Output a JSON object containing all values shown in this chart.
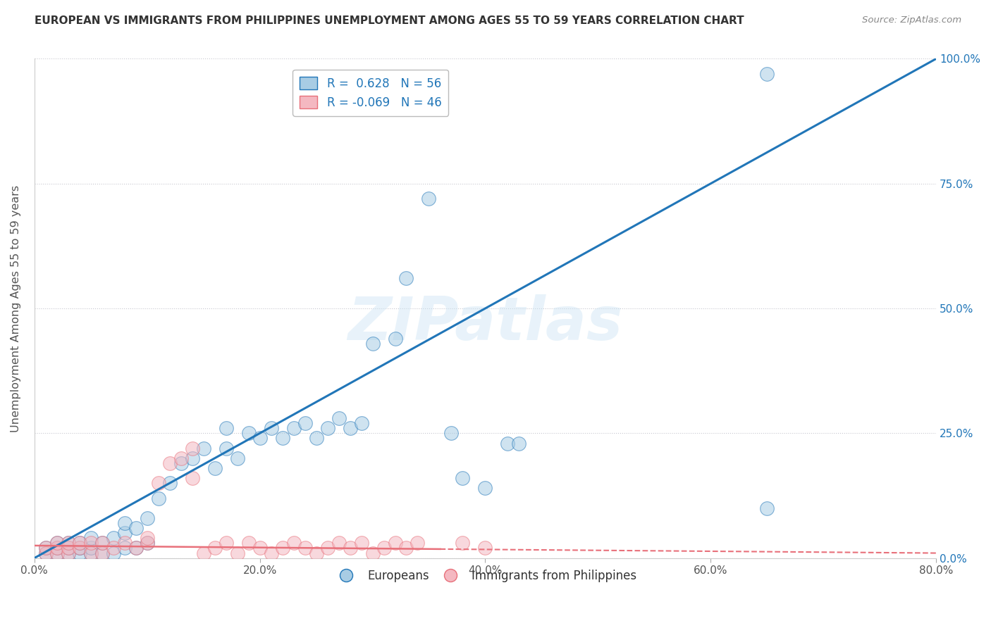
{
  "title": "EUROPEAN VS IMMIGRANTS FROM PHILIPPINES UNEMPLOYMENT AMONG AGES 55 TO 59 YEARS CORRELATION CHART",
  "source": "Source: ZipAtlas.com",
  "ylabel": "Unemployment Among Ages 55 to 59 years",
  "watermark": "ZIPatlas",
  "xmin": 0.0,
  "xmax": 0.8,
  "ymin": 0.0,
  "ymax": 1.0,
  "yticks": [
    0.0,
    0.25,
    0.5,
    0.75,
    1.0
  ],
  "ytick_labels": [
    "0.0%",
    "25.0%",
    "50.0%",
    "75.0%",
    "100.0%"
  ],
  "xticks": [
    0.0,
    0.2,
    0.4,
    0.6,
    0.8
  ],
  "xtick_labels": [
    "0.0%",
    "20.0%",
    "40.0%",
    "60.0%",
    "80.0%"
  ],
  "blue_R": 0.628,
  "blue_N": 56,
  "pink_R": -0.069,
  "pink_N": 46,
  "blue_color": "#a8cce4",
  "pink_color": "#f4b8c1",
  "blue_line_color": "#2176b8",
  "pink_line_color": "#e8707a",
  "legend_label_blue": "Europeans",
  "legend_label_pink": "Immigrants from Philippines",
  "blue_line_x0": 0.0,
  "blue_line_y0": 0.0,
  "blue_line_x1": 0.8,
  "blue_line_y1": 1.0,
  "pink_line_solid_x0": 0.0,
  "pink_line_solid_y0": 0.025,
  "pink_line_solid_x1": 0.36,
  "pink_line_solid_y1": 0.018,
  "pink_line_dash_x0": 0.36,
  "pink_line_dash_y0": 0.018,
  "pink_line_dash_x1": 0.8,
  "pink_line_dash_y1": 0.01,
  "blue_scatter_x": [
    0.01,
    0.01,
    0.02,
    0.02,
    0.02,
    0.03,
    0.03,
    0.03,
    0.04,
    0.04,
    0.04,
    0.05,
    0.05,
    0.05,
    0.06,
    0.06,
    0.07,
    0.07,
    0.08,
    0.08,
    0.08,
    0.09,
    0.09,
    0.1,
    0.1,
    0.11,
    0.12,
    0.13,
    0.14,
    0.15,
    0.16,
    0.17,
    0.17,
    0.18,
    0.19,
    0.2,
    0.21,
    0.22,
    0.23,
    0.24,
    0.25,
    0.26,
    0.27,
    0.28,
    0.29,
    0.3,
    0.32,
    0.33,
    0.35,
    0.37,
    0.38,
    0.4,
    0.42,
    0.43,
    0.65,
    0.65
  ],
  "blue_scatter_y": [
    0.01,
    0.02,
    0.01,
    0.02,
    0.03,
    0.01,
    0.02,
    0.03,
    0.01,
    0.02,
    0.03,
    0.01,
    0.02,
    0.04,
    0.01,
    0.03,
    0.01,
    0.04,
    0.02,
    0.05,
    0.07,
    0.02,
    0.06,
    0.03,
    0.08,
    0.12,
    0.15,
    0.19,
    0.2,
    0.22,
    0.18,
    0.22,
    0.26,
    0.2,
    0.25,
    0.24,
    0.26,
    0.24,
    0.26,
    0.27,
    0.24,
    0.26,
    0.28,
    0.26,
    0.27,
    0.43,
    0.44,
    0.56,
    0.72,
    0.25,
    0.16,
    0.14,
    0.23,
    0.23,
    0.1,
    0.97
  ],
  "pink_scatter_x": [
    0.01,
    0.01,
    0.02,
    0.02,
    0.02,
    0.03,
    0.03,
    0.03,
    0.04,
    0.04,
    0.05,
    0.05,
    0.06,
    0.06,
    0.07,
    0.08,
    0.09,
    0.1,
    0.1,
    0.11,
    0.12,
    0.13,
    0.14,
    0.14,
    0.15,
    0.16,
    0.17,
    0.18,
    0.19,
    0.2,
    0.21,
    0.22,
    0.23,
    0.24,
    0.25,
    0.26,
    0.27,
    0.28,
    0.29,
    0.3,
    0.31,
    0.32,
    0.33,
    0.34,
    0.38,
    0.4
  ],
  "pink_scatter_y": [
    0.01,
    0.02,
    0.01,
    0.02,
    0.03,
    0.01,
    0.02,
    0.03,
    0.02,
    0.03,
    0.01,
    0.03,
    0.01,
    0.03,
    0.02,
    0.03,
    0.02,
    0.03,
    0.04,
    0.15,
    0.19,
    0.2,
    0.16,
    0.22,
    0.01,
    0.02,
    0.03,
    0.01,
    0.03,
    0.02,
    0.01,
    0.02,
    0.03,
    0.02,
    0.01,
    0.02,
    0.03,
    0.02,
    0.03,
    0.01,
    0.02,
    0.03,
    0.02,
    0.03,
    0.03,
    0.02
  ]
}
